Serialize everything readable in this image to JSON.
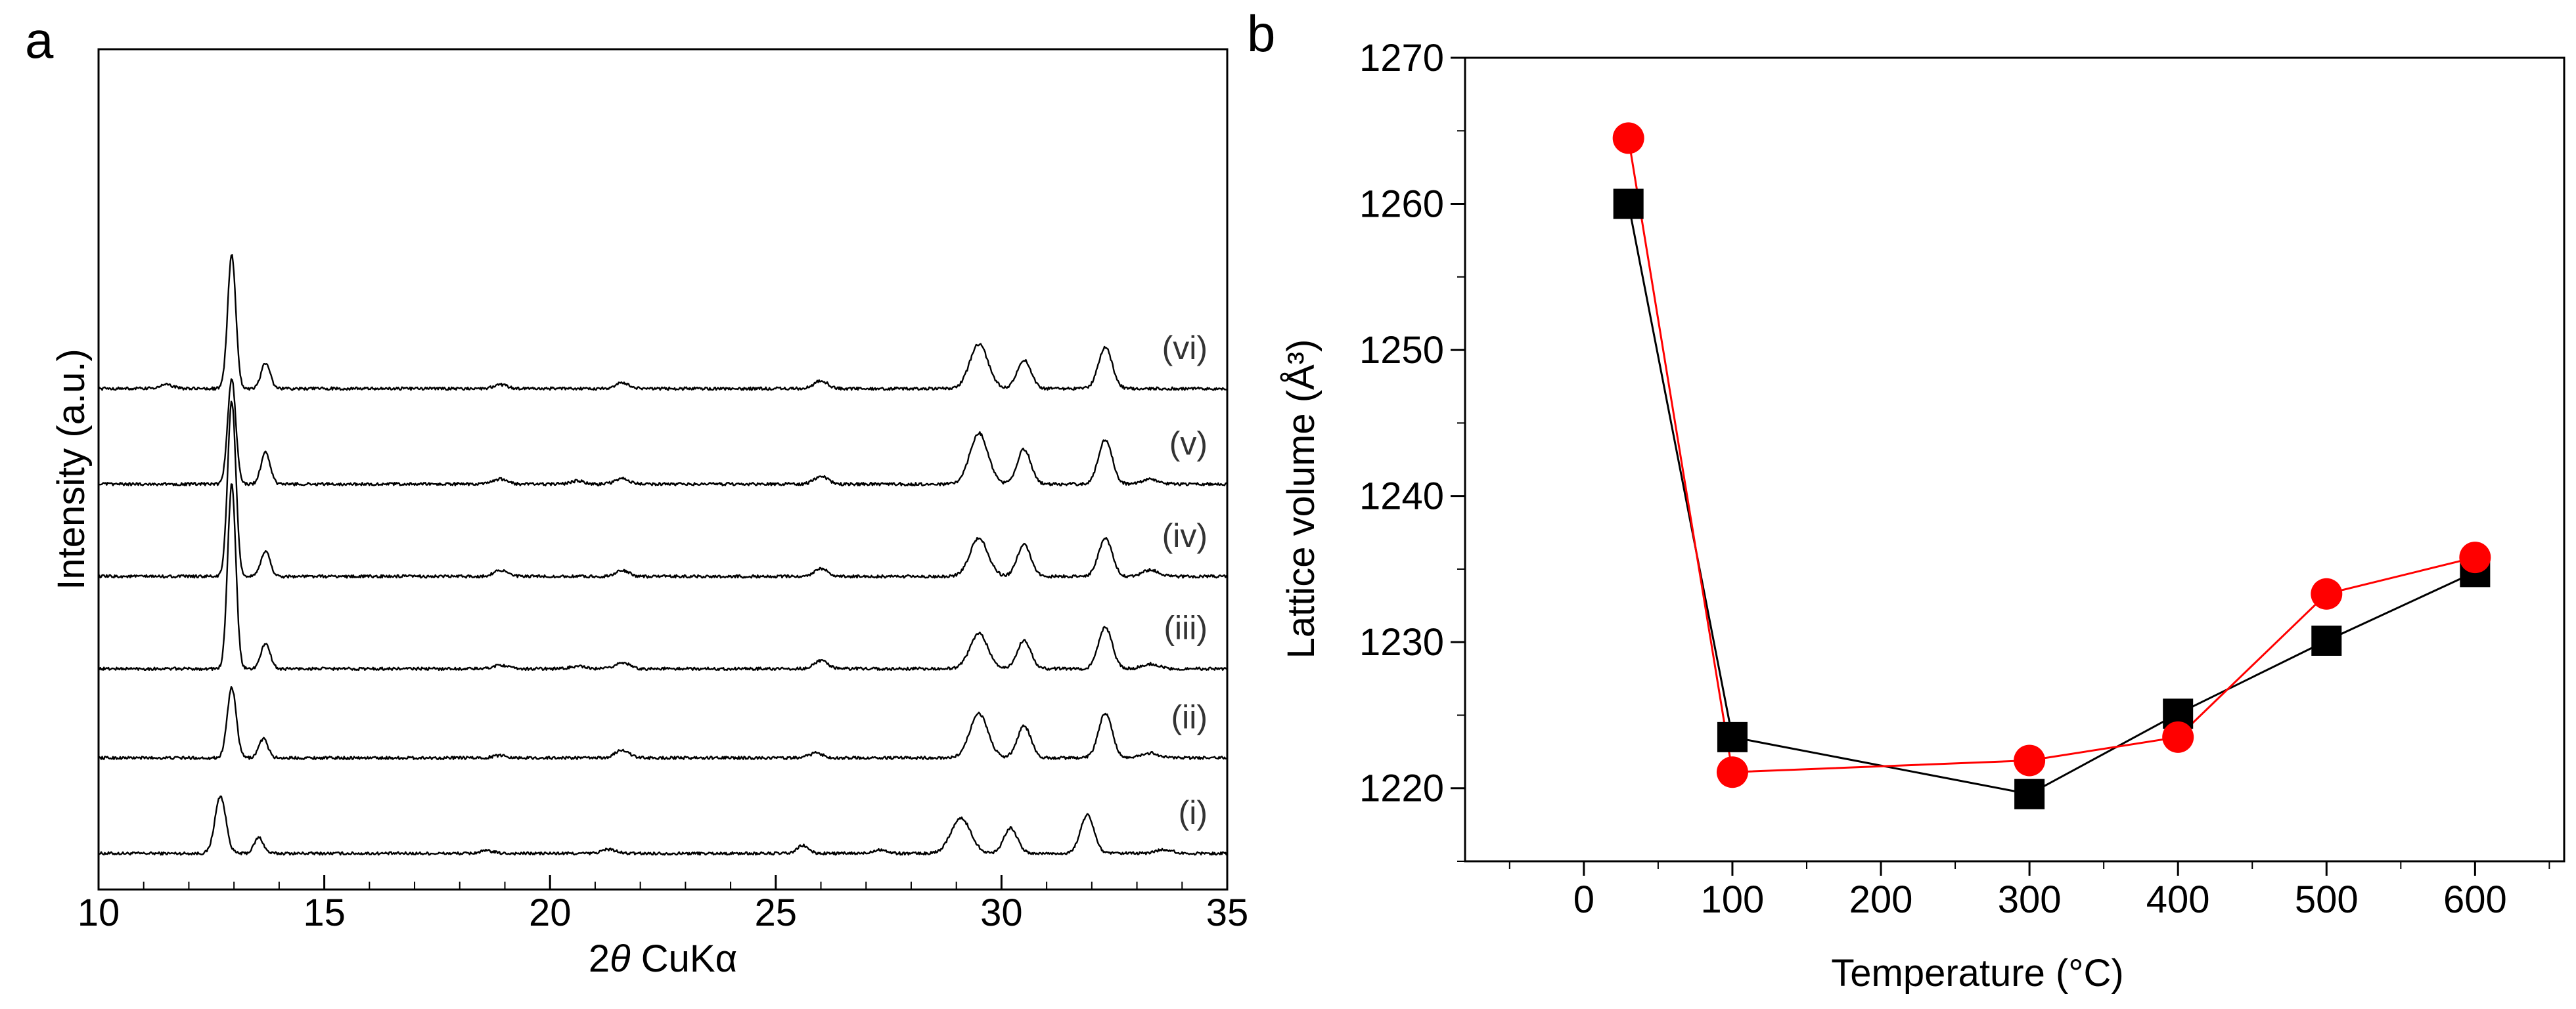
{
  "chart_data": [
    {
      "panel": "a",
      "type": "line",
      "title": "",
      "xlabel_italic": "θ",
      "xlabel_prefix": "2",
      "xlabel_suffix": " CuKα",
      "ylabel": "Intensity (a.u.)",
      "xlim": [
        10,
        35
      ],
      "xticks": [
        10,
        15,
        20,
        25,
        30,
        35
      ],
      "xtick_labels": [
        "10",
        "15",
        "20",
        "25",
        "30",
        "35"
      ],
      "y_units": "arbitrary, traces stacked with vertical offset",
      "peaks_2theta_approx": [
        12.9,
        13.7,
        18.9,
        21.6,
        26.0,
        29.5,
        30.5,
        32.3
      ],
      "series": [
        {
          "name": "(i)",
          "baseline": 0,
          "peaks": [
            [
              12.7,
              18,
              0.12
            ],
            [
              13.55,
              5,
              0.1
            ],
            [
              18.6,
              0.8,
              0.15
            ],
            [
              21.3,
              1.3,
              0.15
            ],
            [
              25.6,
              2.5,
              0.12
            ],
            [
              27.3,
              1.2,
              0.15
            ],
            [
              29.1,
              11,
              0.22
            ],
            [
              30.2,
              8,
              0.15
            ],
            [
              31.9,
              12,
              0.15
            ],
            [
              33.6,
              1.2,
              0.18
            ]
          ]
        },
        {
          "name": "(ii)",
          "baseline": 30,
          "peaks": [
            [
              12.95,
              22,
              0.1
            ],
            [
              13.65,
              6,
              0.1
            ],
            [
              18.9,
              0.8,
              0.15
            ],
            [
              21.6,
              2.5,
              0.15
            ],
            [
              25.9,
              1.5,
              0.15
            ],
            [
              29.5,
              14,
              0.2
            ],
            [
              30.5,
              10,
              0.15
            ],
            [
              32.3,
              14,
              0.15
            ],
            [
              33.3,
              1.5,
              0.18
            ]
          ]
        },
        {
          "name": "(iii)",
          "baseline": 58,
          "peaks": [
            [
              12.95,
              58,
              0.09
            ],
            [
              13.7,
              8,
              0.1
            ],
            [
              18.9,
              1.2,
              0.15
            ],
            [
              20.6,
              0.8,
              0.15
            ],
            [
              21.6,
              2.0,
              0.15
            ],
            [
              26.0,
              2.5,
              0.15
            ],
            [
              29.5,
              11,
              0.2
            ],
            [
              30.5,
              9,
              0.15
            ],
            [
              32.3,
              13,
              0.15
            ],
            [
              33.3,
              1.5,
              0.18
            ]
          ]
        },
        {
          "name": "(iv)",
          "baseline": 87,
          "peaks": [
            [
              12.95,
              55,
              0.09
            ],
            [
              13.7,
              8,
              0.1
            ],
            [
              18.9,
              2.0,
              0.15
            ],
            [
              21.6,
              1.8,
              0.15
            ],
            [
              26.0,
              2.5,
              0.15
            ],
            [
              29.5,
              12,
              0.2
            ],
            [
              30.5,
              10,
              0.15
            ],
            [
              32.3,
              12,
              0.15
            ],
            [
              33.3,
              2.0,
              0.18
            ]
          ]
        },
        {
          "name": "(v)",
          "baseline": 116,
          "peaks": [
            [
              12.95,
              33,
              0.09
            ],
            [
              13.7,
              10,
              0.1
            ],
            [
              18.9,
              1.5,
              0.15
            ],
            [
              20.6,
              1.0,
              0.15
            ],
            [
              21.6,
              1.8,
              0.15
            ],
            [
              26.0,
              2.5,
              0.15
            ],
            [
              29.5,
              16,
              0.2
            ],
            [
              30.5,
              11,
              0.15
            ],
            [
              32.3,
              14,
              0.15
            ],
            [
              33.3,
              1.5,
              0.18
            ]
          ]
        },
        {
          "name": "(vi)",
          "baseline": 146,
          "peaks": [
            [
              11.5,
              1.2,
              0.15
            ],
            [
              12.95,
              42,
              0.09
            ],
            [
              13.7,
              8,
              0.1
            ],
            [
              18.9,
              1.2,
              0.15
            ],
            [
              21.6,
              1.8,
              0.15
            ],
            [
              26.0,
              2.5,
              0.15
            ],
            [
              29.5,
              14,
              0.2
            ],
            [
              30.5,
              9,
              0.15
            ],
            [
              32.3,
              13,
              0.15
            ]
          ]
        }
      ]
    },
    {
      "panel": "b",
      "type": "line",
      "title": "",
      "xlabel": "Temperature (°C)",
      "ylabel": "Lattice volume (Å³)",
      "xlim": [
        -80,
        660
      ],
      "ylim": [
        1215,
        1270
      ],
      "xticks": [
        0,
        100,
        200,
        300,
        400,
        500,
        600
      ],
      "xtick_labels": [
        "0",
        "100",
        "200",
        "300",
        "400",
        "500",
        "600"
      ],
      "yticks": [
        1220,
        1230,
        1240,
        1250,
        1260,
        1270
      ],
      "ytick_labels": [
        "1220",
        "1230",
        "1240",
        "1250",
        "1260",
        "1270"
      ],
      "legend": "none",
      "series": [
        {
          "name": "squares",
          "marker": "square",
          "color": "#000000",
          "x": [
            30,
            100,
            300,
            400,
            500,
            600
          ],
          "values": [
            1260.0,
            1223.5,
            1219.6,
            1225.1,
            1230.1,
            1234.8
          ]
        },
        {
          "name": "circles",
          "marker": "circle",
          "color": "#ff0000",
          "x": [
            30,
            100,
            300,
            400,
            500,
            600
          ],
          "values": [
            1264.5,
            1221.1,
            1221.9,
            1223.5,
            1233.3,
            1235.8
          ]
        }
      ]
    }
  ],
  "panel_letters": {
    "a": "a",
    "b": "b"
  }
}
